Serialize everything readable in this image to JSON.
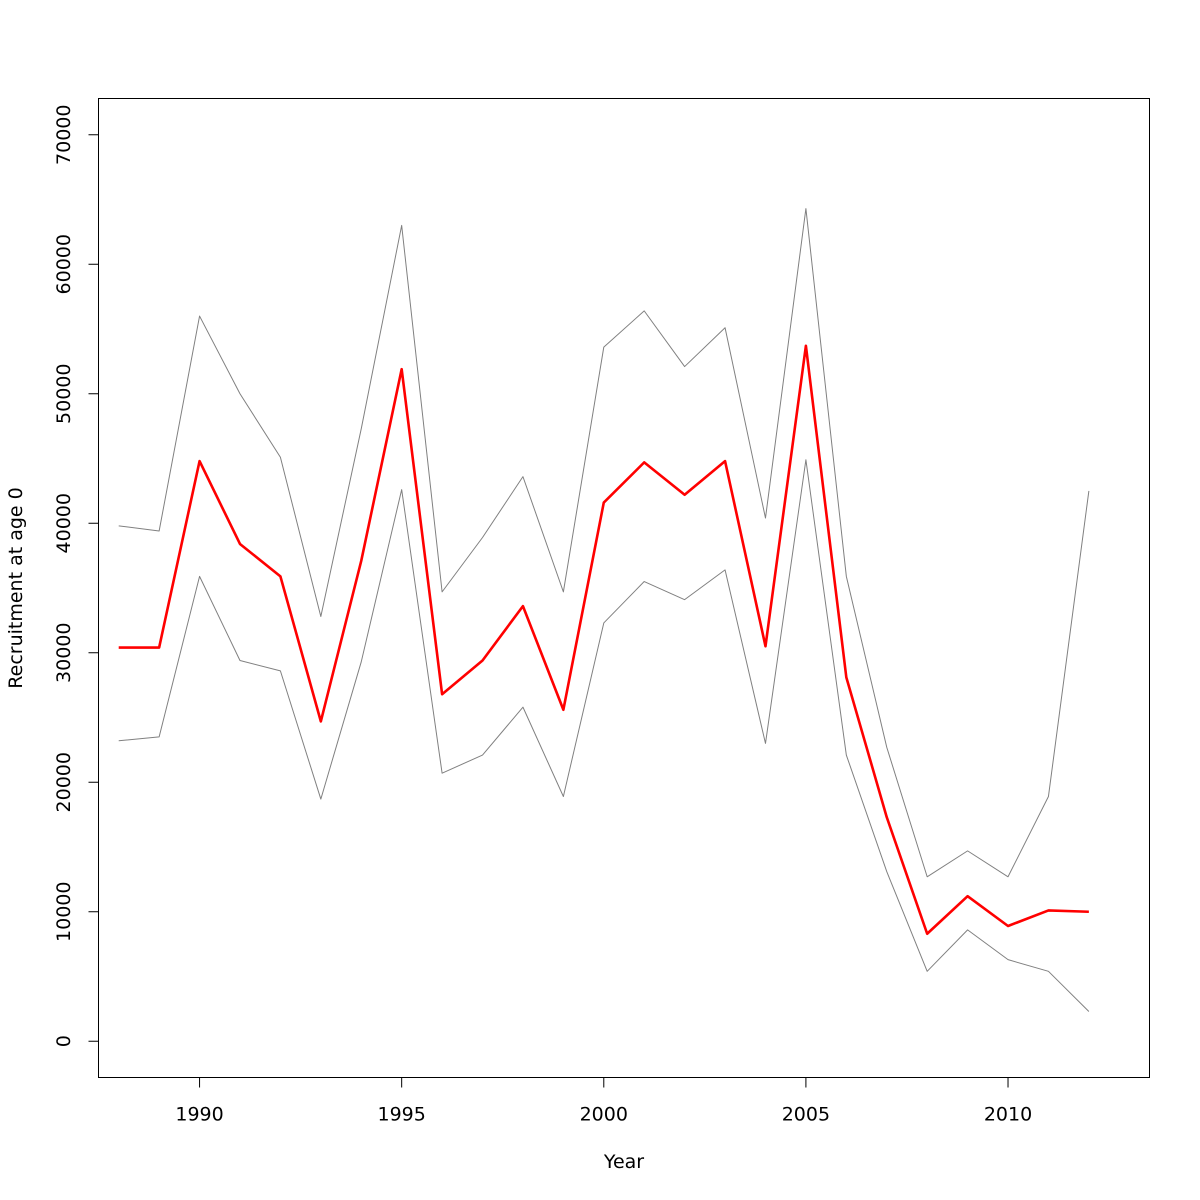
{
  "chart_data": {
    "type": "line",
    "title": "",
    "xlabel": "Year",
    "ylabel": "Recruitment at age 0",
    "xlim": [
      1987.5,
      2013.5
    ],
    "ylim": [
      -2800,
      72800
    ],
    "x_ticks": [
      1990,
      1995,
      2000,
      2005,
      2010
    ],
    "y_ticks": [
      0,
      10000,
      20000,
      30000,
      40000,
      50000,
      60000,
      70000
    ],
    "grid": false,
    "legend": "none",
    "x": [
      1988,
      1989,
      1990,
      1991,
      1992,
      1993,
      1994,
      1995,
      1996,
      1997,
      1998,
      1999,
      2000,
      2001,
      2002,
      2003,
      2004,
      2005,
      2006,
      2007,
      2008,
      2009,
      2010,
      2011,
      2012
    ],
    "series": [
      {
        "role": "estimate",
        "color": "#ff0000",
        "values": [
          30400,
          30400,
          44800,
          38400,
          35900,
          24700,
          37100,
          51900,
          26800,
          29400,
          33600,
          25600,
          41600,
          44700,
          42200,
          44800,
          30500,
          53700,
          28100,
          17300,
          8300,
          11200,
          8900,
          10100,
          10000
        ]
      },
      {
        "role": "upper-bound",
        "color": "#808080",
        "values": [
          39800,
          39400,
          56000,
          50000,
          45100,
          32800,
          47300,
          63000,
          34700,
          38900,
          43600,
          34700,
          53600,
          56400,
          52100,
          55100,
          40400,
          64300,
          35900,
          22700,
          12700,
          14700,
          12700,
          18900,
          42500
        ]
      },
      {
        "role": "lower-bound",
        "color": "#808080",
        "values": [
          23200,
          23500,
          35900,
          29400,
          28600,
          18700,
          29300,
          42600,
          20700,
          22100,
          25800,
          18900,
          32300,
          35500,
          34100,
          36400,
          23000,
          44900,
          22100,
          13100,
          5400,
          8600,
          6300,
          5400,
          2300
        ]
      }
    ]
  }
}
